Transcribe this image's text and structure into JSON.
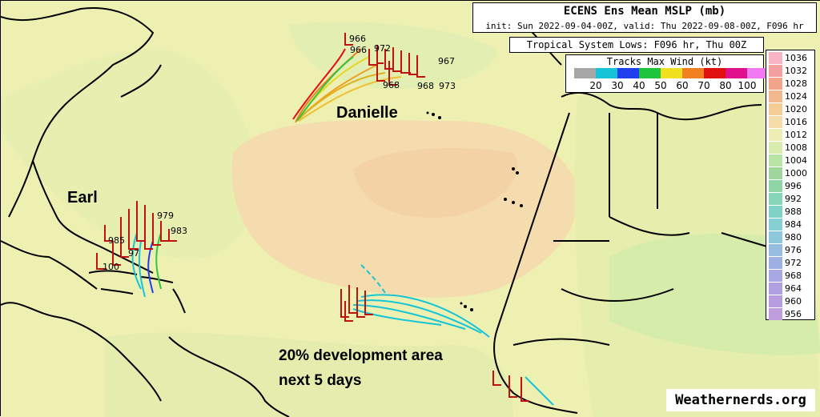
{
  "title": {
    "main": "ECENS Ens Mean MSLP (mb)",
    "sub": "init: Sun 2022-09-04-00Z, valid: Thu 2022-09-08-00Z, F096 hr"
  },
  "systems_label": "Tropical System Lows: F096 hr, Thu 00Z",
  "wind_legend": {
    "title": "Tracks Max Wind (kt)",
    "colors": [
      "#a6a6a6",
      "#16c4d8",
      "#2040f0",
      "#1ec43c",
      "#f0e020",
      "#f08020",
      "#e01010",
      "#e0108c",
      "#f078f0"
    ],
    "labels": [
      "20",
      "30",
      "40",
      "50",
      "60",
      "70",
      "80",
      "100"
    ]
  },
  "pressure_legend": {
    "levels": [
      {
        "label": "1036",
        "color": "#f8b4c4"
      },
      {
        "label": "1032",
        "color": "#f4a0a0"
      },
      {
        "label": "1028",
        "color": "#f2a48c"
      },
      {
        "label": "1024",
        "color": "#f2b88e"
      },
      {
        "label": "1020",
        "color": "#f4cc96"
      },
      {
        "label": "1016",
        "color": "#f4dca8"
      },
      {
        "label": "1012",
        "color": "#eeeeb4"
      },
      {
        "label": "1008",
        "color": "#d8ecae"
      },
      {
        "label": "1004",
        "color": "#b8e4a6"
      },
      {
        "label": "1000",
        "color": "#9ed69c"
      },
      {
        "label": "996",
        "color": "#8ed6a6"
      },
      {
        "label": "992",
        "color": "#86d6b8"
      },
      {
        "label": "988",
        "color": "#7ed2c6"
      },
      {
        "label": "984",
        "color": "#86d0d4"
      },
      {
        "label": "980",
        "color": "#8ec8dc"
      },
      {
        "label": "976",
        "color": "#96bce0"
      },
      {
        "label": "972",
        "color": "#9eb0e2"
      },
      {
        "label": "968",
        "color": "#a8a8e4"
      },
      {
        "label": "964",
        "color": "#b0a0e2"
      },
      {
        "label": "960",
        "color": "#b89ce0"
      },
      {
        "label": "956",
        "color": "#c09ede"
      }
    ]
  },
  "storms": {
    "danielle": "Danielle",
    "earl": "Earl"
  },
  "storm_pressures": {
    "danielle": [
      "966",
      "966",
      "972",
      "967",
      "973",
      "968",
      "968"
    ],
    "earl": [
      "979",
      "983",
      "985",
      "100",
      "97"
    ]
  },
  "note_line1": "20% development area",
  "note_line2": "next 5 days",
  "credit": "Weathernerds.org"
}
